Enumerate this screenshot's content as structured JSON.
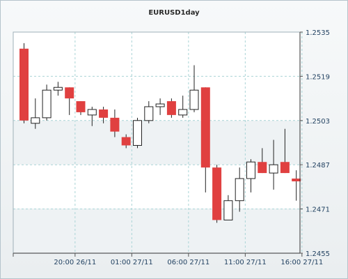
{
  "chart_data": {
    "type": "candlestick",
    "title": "EURUSD1day",
    "xlabel": "",
    "ylabel": "",
    "ylim": [
      1.2455,
      1.2535
    ],
    "y_ticks": [
      "1.2455",
      "1.2471",
      "1.2487",
      "1.2503",
      "1.2519",
      "1.2535"
    ],
    "x_tick_labels": [
      "20:00 26/11",
      "01:00 27/11",
      "06:00 27/11",
      "11:00 27/11",
      "16:00 27/11"
    ],
    "x_tick_positions": [
      4.5,
      9.5,
      14.5,
      19.5,
      24.5
    ],
    "grid": true,
    "up_color": "#ffffff",
    "down_color": "#e04040",
    "ohlc": [
      {
        "o": 1.2529,
        "h": 1.2531,
        "l": 1.2502,
        "c": 1.2503
      },
      {
        "o": 1.2502,
        "h": 1.2511,
        "l": 1.25,
        "c": 1.2504
      },
      {
        "o": 1.2504,
        "h": 1.2516,
        "l": 1.2503,
        "c": 1.2514
      },
      {
        "o": 1.2514,
        "h": 1.2517,
        "l": 1.2512,
        "c": 1.2515
      },
      {
        "o": 1.2515,
        "h": 1.2515,
        "l": 1.2505,
        "c": 1.2511
      },
      {
        "o": 1.251,
        "h": 1.251,
        "l": 1.2505,
        "c": 1.2506
      },
      {
        "o": 1.2505,
        "h": 1.2508,
        "l": 1.2501,
        "c": 1.2507
      },
      {
        "o": 1.2507,
        "h": 1.2508,
        "l": 1.2502,
        "c": 1.2504
      },
      {
        "o": 1.2504,
        "h": 1.2507,
        "l": 1.2497,
        "c": 1.2499
      },
      {
        "o": 1.2497,
        "h": 1.2498,
        "l": 1.2493,
        "c": 1.2494
      },
      {
        "o": 1.2494,
        "h": 1.2504,
        "l": 1.2493,
        "c": 1.2503
      },
      {
        "o": 1.2503,
        "h": 1.251,
        "l": 1.2502,
        "c": 1.2508
      },
      {
        "o": 1.2508,
        "h": 1.2511,
        "l": 1.2505,
        "c": 1.2509
      },
      {
        "o": 1.251,
        "h": 1.2511,
        "l": 1.2504,
        "c": 1.2505
      },
      {
        "o": 1.2505,
        "h": 1.2512,
        "l": 1.2504,
        "c": 1.2507
      },
      {
        "o": 1.2507,
        "h": 1.2523,
        "l": 1.2506,
        "c": 1.2514
      },
      {
        "o": 1.2515,
        "h": 1.2515,
        "l": 1.2477,
        "c": 1.2486
      },
      {
        "o": 1.2486,
        "h": 1.2487,
        "l": 1.2466,
        "c": 1.2467
      },
      {
        "o": 1.2467,
        "h": 1.2476,
        "l": 1.2467,
        "c": 1.2474
      },
      {
        "o": 1.2474,
        "h": 1.2486,
        "l": 1.247,
        "c": 1.2482
      },
      {
        "o": 1.2482,
        "h": 1.2489,
        "l": 1.2477,
        "c": 1.2488
      },
      {
        "o": 1.2488,
        "h": 1.2493,
        "l": 1.2484,
        "c": 1.2484
      },
      {
        "o": 1.2484,
        "h": 1.2496,
        "l": 1.2478,
        "c": 1.2487
      },
      {
        "o": 1.2488,
        "h": 1.25,
        "l": 1.2484,
        "c": 1.2484
      },
      {
        "o": 1.2482,
        "h": 1.2485,
        "l": 1.2474,
        "c": 1.2481
      }
    ]
  }
}
